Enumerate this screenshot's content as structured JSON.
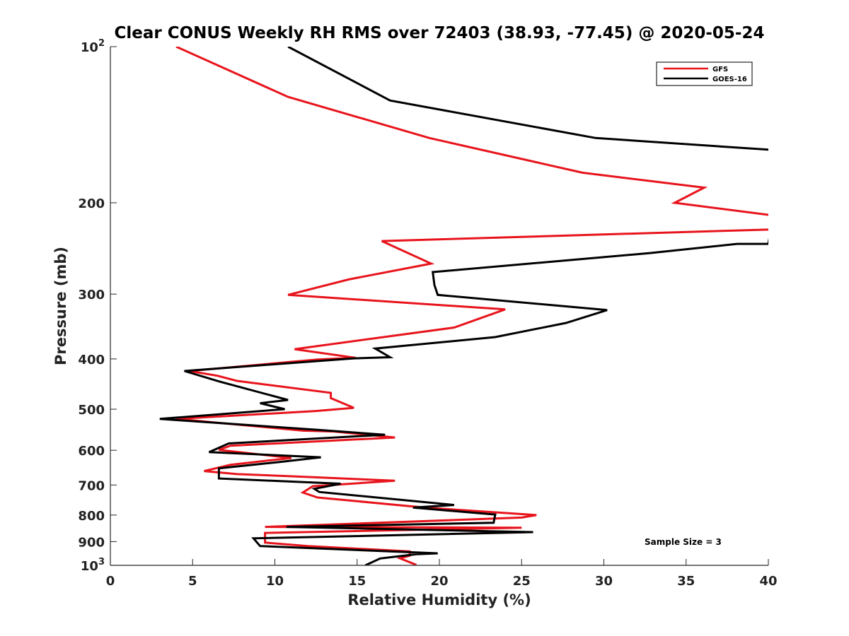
{
  "chart_data": {
    "type": "line",
    "title": "Clear CONUS Weekly RH RMS over 72403 (38.93, -77.45) @ 2020-05-24",
    "xlabel": "Relative Humidity (%)",
    "ylabel": "Pressure (mb)",
    "xlim": [
      0,
      40
    ],
    "ylim": [
      1000,
      100
    ],
    "y_scale": "log",
    "y_axis_reversed": true,
    "x_ticks": [
      0,
      5,
      10,
      15,
      20,
      25,
      30,
      35,
      40
    ],
    "y_ticks": [
      {
        "value": 100,
        "base": "10",
        "exp": "2"
      },
      {
        "value": 200,
        "label": "200"
      },
      {
        "value": 300,
        "label": "300"
      },
      {
        "value": 400,
        "label": "400"
      },
      {
        "value": 500,
        "label": "500"
      },
      {
        "value": 600,
        "label": "600"
      },
      {
        "value": 700,
        "label": "700"
      },
      {
        "value": 800,
        "label": "800"
      },
      {
        "value": 900,
        "label": "900"
      },
      {
        "value": 1000,
        "base": "10",
        "exp": "3"
      }
    ],
    "legend": {
      "position": "top-right"
    },
    "annotation": "Sample Size = 3",
    "series": [
      {
        "name": "GFS",
        "color": "#e8141c",
        "points": [
          [
            4.0,
            100
          ],
          [
            10.8,
            125
          ],
          [
            19.4,
            150
          ],
          [
            28.7,
            175
          ],
          [
            36.1,
            187
          ],
          [
            34.3,
            200
          ],
          [
            40.5,
            212
          ],
          [
            40.5,
            225
          ],
          [
            16.5,
            237
          ],
          [
            19.5,
            262
          ],
          [
            14.5,
            281
          ],
          [
            10.8,
            301
          ],
          [
            24.0,
            321
          ],
          [
            20.9,
            348
          ],
          [
            11.2,
            383
          ],
          [
            14.9,
            398
          ],
          [
            12.6,
            401
          ],
          [
            4.8,
            422
          ],
          [
            6.5,
            431
          ],
          [
            7.7,
            441
          ],
          [
            13.4,
            465
          ],
          [
            13.4,
            476
          ],
          [
            14.8,
            497
          ],
          [
            12.5,
            504
          ],
          [
            4.0,
            522
          ],
          [
            11.7,
            550
          ],
          [
            13.6,
            552
          ],
          [
            17.3,
            567
          ],
          [
            7.3,
            588
          ],
          [
            6.6,
            599
          ],
          [
            11.0,
            621
          ],
          [
            7.3,
            640
          ],
          [
            5.7,
            658
          ],
          [
            7.7,
            667
          ],
          [
            10.8,
            673
          ],
          [
            17.3,
            687
          ],
          [
            12.3,
            704
          ],
          [
            11.7,
            724
          ],
          [
            12.6,
            740
          ],
          [
            18.4,
            770
          ],
          [
            19.7,
            776
          ],
          [
            25.9,
            800
          ],
          [
            25.0,
            809
          ],
          [
            9.4,
            843
          ],
          [
            25.0,
            846
          ],
          [
            9.4,
            866
          ],
          [
            9.4,
            870
          ],
          [
            9.4,
            904
          ],
          [
            12.0,
            918
          ],
          [
            18.2,
            940
          ],
          [
            18.2,
            958
          ],
          [
            17.6,
            969
          ],
          [
            18.6,
            998
          ]
        ]
      },
      {
        "name": "GOES-16",
        "color": "#000000",
        "points": [
          [
            10.8,
            100
          ],
          [
            17.0,
            127
          ],
          [
            29.5,
            150
          ],
          [
            40.0,
            158
          ],
          [
            41.0,
            160
          ],
          [
            40.0,
            240
          ],
          [
            38.1,
            240
          ],
          [
            32.8,
            250
          ],
          [
            19.6,
            272
          ],
          [
            19.7,
            288
          ],
          [
            19.9,
            301
          ],
          [
            30.2,
            322
          ],
          [
            27.7,
            341
          ],
          [
            23.4,
            363
          ],
          [
            16.1,
            382
          ],
          [
            17.0,
            397
          ],
          [
            14.8,
            399
          ],
          [
            4.5,
            422
          ],
          [
            6.6,
            442
          ],
          [
            10.8,
            480
          ],
          [
            9.1,
            487
          ],
          [
            10.6,
            500
          ],
          [
            3.0,
            522
          ],
          [
            12.6,
            548
          ],
          [
            16.7,
            560
          ],
          [
            7.2,
            582
          ],
          [
            6.0,
            605
          ],
          [
            12.8,
            619
          ],
          [
            10.1,
            633
          ],
          [
            6.6,
            650
          ],
          [
            6.6,
            680
          ],
          [
            14.0,
            696
          ],
          [
            12.4,
            712
          ],
          [
            12.7,
            722
          ],
          [
            20.9,
            765
          ],
          [
            18.4,
            774
          ],
          [
            23.4,
            798
          ],
          [
            23.3,
            828
          ],
          [
            10.7,
            843
          ],
          [
            25.7,
            863
          ],
          [
            8.7,
            887
          ],
          [
            9.1,
            918
          ],
          [
            19.9,
            948
          ],
          [
            18.6,
            952
          ],
          [
            16.4,
            970
          ],
          [
            15.5,
            1000
          ]
        ]
      }
    ]
  }
}
